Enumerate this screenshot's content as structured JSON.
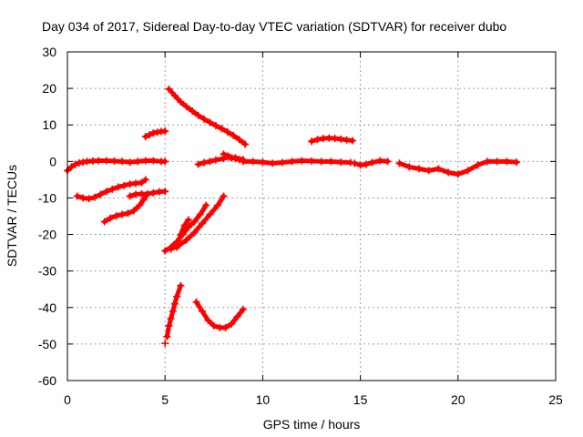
{
  "chart_data": {
    "type": "scatter",
    "title": "Day 034 of 2017, Sidereal Day-to-day VTEC variation (SDTVAR) for receiver dubo",
    "xlabel": "GPS time / hours",
    "ylabel": "SDTVAR / TECUs",
    "xlim": [
      0,
      25
    ],
    "ylim": [
      -60,
      30
    ],
    "xticks": [
      0,
      5,
      10,
      15,
      20,
      25
    ],
    "yticks": [
      30,
      20,
      10,
      0,
      -10,
      -20,
      -30,
      -40,
      -50,
      -60
    ],
    "grid": true,
    "marker": "plus",
    "color": "#ff0000",
    "series": [
      {
        "x": [
          0.0,
          0.2,
          0.4,
          0.6,
          0.8,
          1.0,
          1.3,
          1.6,
          2.0,
          2.4,
          2.8,
          3.2,
          3.6,
          4.0,
          4.4,
          4.8,
          5.0
        ],
        "y": [
          -2.5,
          -1.5,
          -0.8,
          -0.4,
          -0.2,
          0.0,
          0.1,
          0.2,
          0.2,
          0.1,
          0.0,
          -0.2,
          0.0,
          0.2,
          0.2,
          0.0,
          0.0
        ]
      },
      {
        "x": [
          0.5,
          0.8,
          1.1,
          1.4,
          1.7,
          2.0,
          2.3,
          2.6,
          2.9,
          3.2,
          3.5,
          3.8,
          4.0
        ],
        "y": [
          -9.5,
          -10.0,
          -10.2,
          -9.8,
          -9.0,
          -8.2,
          -7.6,
          -7.0,
          -6.6,
          -6.2,
          -6.0,
          -5.8,
          -5.0
        ]
      },
      {
        "x": [
          1.9,
          2.2,
          2.5,
          2.8,
          3.1,
          3.4,
          3.7,
          3.9,
          4.1
        ],
        "y": [
          -16.5,
          -15.5,
          -14.9,
          -14.5,
          -14.2,
          -13.5,
          -12.0,
          -10.5,
          -9.0
        ]
      },
      {
        "x": [
          3.2,
          3.5,
          3.8,
          4.1,
          4.4,
          4.7,
          5.0
        ],
        "y": [
          -9.5,
          -9.0,
          -8.9,
          -8.9,
          -8.6,
          -8.3,
          -8.2
        ]
      },
      {
        "x": [
          4.0,
          4.2,
          4.4,
          4.6,
          4.8,
          5.0
        ],
        "y": [
          6.8,
          7.3,
          7.8,
          8.0,
          8.2,
          8.3
        ]
      },
      {
        "x": [
          5.2,
          5.5,
          5.8,
          6.1,
          6.4,
          6.7,
          7.0,
          7.3,
          7.6,
          7.9,
          8.2,
          8.5,
          8.8,
          9.1
        ],
        "y": [
          19.8,
          18.0,
          16.3,
          15.0,
          13.8,
          12.6,
          11.6,
          10.7,
          9.8,
          9.0,
          8.1,
          7.1,
          6.0,
          4.7
        ]
      },
      {
        "x": [
          5.0,
          5.3,
          5.6,
          5.9,
          6.2,
          6.5,
          6.8,
          7.1
        ],
        "y": [
          -24.5,
          -23.5,
          -22.0,
          -20.0,
          -18.0,
          -16.5,
          -14.5,
          -12.0
        ]
      },
      {
        "x": [
          5.3,
          5.7,
          6.1,
          6.5,
          6.9,
          7.3,
          7.7,
          8.0
        ],
        "y": [
          -24.0,
          -23.0,
          -21.5,
          -19.5,
          -17.0,
          -14.5,
          -12.0,
          -9.5
        ]
      },
      {
        "x": [
          5.6,
          5.8,
          6.0,
          6.2
        ],
        "y": [
          -23.5,
          -20.0,
          -17.5,
          -16.0
        ]
      },
      {
        "x": [
          5.1,
          5.2,
          5.3,
          5.4,
          5.5,
          5.6,
          5.8
        ],
        "y": [
          -48.0,
          -45.0,
          -43.0,
          -41.0,
          -39.0,
          -37.0,
          -34.0
        ]
      },
      {
        "x": [
          5.0
        ],
        "y": [
          -49.8
        ]
      },
      {
        "x": [
          6.6,
          6.9,
          7.2,
          7.5,
          7.8,
          8.1,
          8.4,
          8.7,
          9.0
        ],
        "y": [
          -38.5,
          -41.0,
          -43.5,
          -45.0,
          -45.5,
          -45.5,
          -44.5,
          -42.5,
          -40.5
        ]
      },
      {
        "x": [
          6.7,
          7.0,
          7.3,
          7.6,
          8.0,
          8.3,
          8.6,
          9.0
        ],
        "y": [
          -0.8,
          -0.3,
          0.0,
          0.4,
          0.8,
          1.2,
          1.0,
          0.5
        ]
      },
      {
        "x": [
          8.0,
          8.2,
          8.4,
          8.6,
          8.8,
          9.0
        ],
        "y": [
          2.0,
          1.5,
          1.0,
          0.8,
          0.5,
          0.3
        ]
      },
      {
        "x": [
          9.0,
          9.5,
          10.0,
          10.5,
          11.0,
          11.5,
          12.0,
          12.5,
          13.0,
          13.5,
          14.0,
          14.5
        ],
        "y": [
          0.0,
          0.0,
          -0.2,
          -0.5,
          -0.3,
          0.0,
          0.2,
          0.1,
          0.0,
          0.0,
          -0.2,
          -0.3
        ]
      },
      {
        "x": [
          14.7,
          15.0,
          15.3,
          15.6,
          16.0,
          16.4
        ],
        "y": [
          -0.5,
          -1.0,
          -0.8,
          -0.3,
          0.2,
          0.0
        ]
      },
      {
        "x": [
          12.5,
          12.8,
          13.1,
          13.4,
          13.7,
          14.0,
          14.3,
          14.6
        ],
        "y": [
          5.5,
          6.0,
          6.3,
          6.4,
          6.3,
          6.1,
          5.9,
          5.7
        ]
      },
      {
        "x": [
          17.0,
          17.5,
          18.0,
          18.5,
          19.0,
          19.5,
          20.0,
          20.5,
          21.0,
          21.5,
          22.0,
          22.5,
          23.0
        ],
        "y": [
          -0.5,
          -1.5,
          -2.0,
          -2.5,
          -2.0,
          -3.0,
          -3.5,
          -2.5,
          -1.0,
          0.0,
          0.0,
          0.0,
          -0.2
        ]
      }
    ]
  }
}
